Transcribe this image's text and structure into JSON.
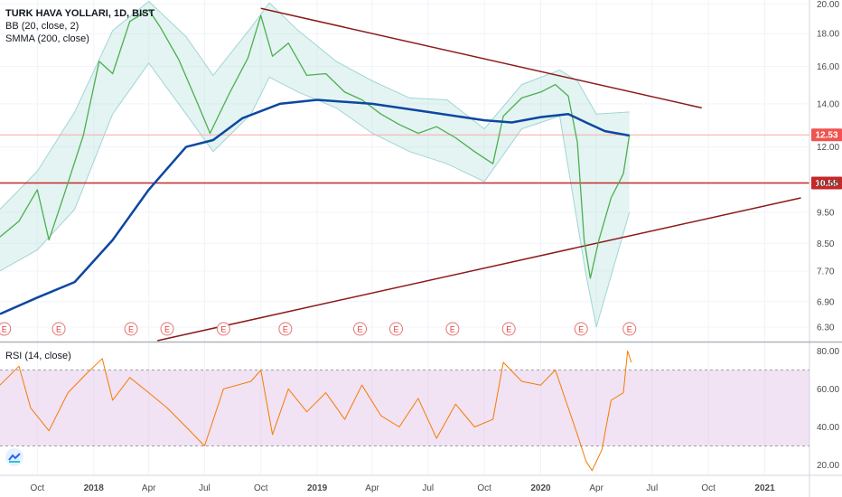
{
  "chart_data": [
    {
      "type": "line",
      "legend": {
        "title": "TURK HAVA YOLLARI, 1D, BIST",
        "indicators": [
          "BB (20, close, 2)",
          "SMMA (200, close)"
        ]
      },
      "ylim": [
        6.0,
        20.3
      ],
      "y_scale": "log",
      "yticks": [
        "20.00",
        "18.00",
        "16.00",
        "14.00",
        "12.00",
        "10.55",
        "9.50",
        "8.50",
        "7.70",
        "6.90",
        "6.30"
      ],
      "xticks": [
        "Oct",
        "2018",
        "Apr",
        "Jul",
        "Oct",
        "2019",
        "Apr",
        "Jul",
        "Oct",
        "2020",
        "Apr",
        "Jul",
        "Oct",
        "2021"
      ],
      "xlim": [
        "2017-08-01",
        "2021-03-15"
      ],
      "price_labels": [
        {
          "text": "12.53",
          "value": 12.53,
          "color": "#f05450"
        },
        {
          "text": "10.55",
          "value": 10.55,
          "color": "#c62828"
        }
      ],
      "horizontal_lines": [
        {
          "value": 12.53,
          "color": "#f7a9a7"
        },
        {
          "value": 10.55,
          "color": "#c62828"
        }
      ],
      "trend_lines": [
        {
          "from": [
            "2018-10-01",
            19.7
          ],
          "to": [
            "2020-09-20",
            13.8
          ],
          "color": "#8b1a1a"
        },
        {
          "from": [
            "2018-04-15",
            6.0
          ],
          "to": [
            "2021-03-01",
            10.0
          ],
          "color": "#8b1a1a"
        }
      ],
      "earnings_markers": {
        "label": "E",
        "dates": [
          "2017-08-08",
          "2017-11-05",
          "2018-03-03",
          "2018-05-01",
          "2018-08-01",
          "2018-11-10",
          "2019-03-12",
          "2019-05-10",
          "2019-08-10",
          "2019-11-10",
          "2020-03-07",
          "2020-05-25"
        ]
      },
      "series": [
        {
          "name": "price",
          "color": "#4caf50",
          "points": [
            [
              "2017-08-01",
              8.7
            ],
            [
              "2017-09-01",
              9.2
            ],
            [
              "2017-10-01",
              10.3
            ],
            [
              "2017-10-20",
              8.6
            ],
            [
              "2017-11-15",
              10.2
            ],
            [
              "2017-12-15",
              12.5
            ],
            [
              "2018-01-10",
              16.3
            ],
            [
              "2018-02-01",
              15.6
            ],
            [
              "2018-03-01",
              18.8
            ],
            [
              "2018-04-01",
              19.6
            ],
            [
              "2018-04-20",
              18.4
            ],
            [
              "2018-05-20",
              16.4
            ],
            [
              "2018-06-20",
              14.0
            ],
            [
              "2018-07-10",
              12.6
            ],
            [
              "2018-08-10",
              14.5
            ],
            [
              "2018-09-10",
              16.5
            ],
            [
              "2018-10-01",
              19.2
            ],
            [
              "2018-10-20",
              16.6
            ],
            [
              "2018-11-15",
              17.4
            ],
            [
              "2018-12-15",
              15.5
            ],
            [
              "2019-01-15",
              15.6
            ],
            [
              "2019-02-15",
              14.6
            ],
            [
              "2019-03-15",
              14.2
            ],
            [
              "2019-04-15",
              13.5
            ],
            [
              "2019-05-15",
              13.0
            ],
            [
              "2019-06-15",
              12.6
            ],
            [
              "2019-07-15",
              12.9
            ],
            [
              "2019-08-15",
              12.4
            ],
            [
              "2019-09-15",
              11.8
            ],
            [
              "2019-10-15",
              11.3
            ],
            [
              "2019-11-01",
              13.4
            ],
            [
              "2019-12-01",
              14.3
            ],
            [
              "2020-01-01",
              14.6
            ],
            [
              "2020-01-25",
              15.0
            ],
            [
              "2020-02-15",
              14.4
            ],
            [
              "2020-03-01",
              12.2
            ],
            [
              "2020-03-12",
              8.6
            ],
            [
              "2020-03-22",
              7.5
            ],
            [
              "2020-04-05",
              8.6
            ],
            [
              "2020-04-25",
              10.0
            ],
            [
              "2020-05-15",
              10.9
            ],
            [
              "2020-05-25",
              12.53
            ]
          ]
        },
        {
          "name": "smma",
          "color": "#0d47a1",
          "points": [
            [
              "2017-08-01",
              6.6
            ],
            [
              "2017-10-01",
              7.0
            ],
            [
              "2017-12-01",
              7.4
            ],
            [
              "2018-02-01",
              8.6
            ],
            [
              "2018-04-01",
              10.3
            ],
            [
              "2018-06-01",
              12.0
            ],
            [
              "2018-07-15",
              12.3
            ],
            [
              "2018-09-01",
              13.3
            ],
            [
              "2018-11-01",
              14.0
            ],
            [
              "2019-01-01",
              14.2
            ],
            [
              "2019-04-01",
              14.0
            ],
            [
              "2019-07-01",
              13.6
            ],
            [
              "2019-10-01",
              13.2
            ],
            [
              "2019-11-15",
              13.1
            ],
            [
              "2020-01-01",
              13.35
            ],
            [
              "2020-02-15",
              13.5
            ],
            [
              "2020-03-15",
              13.1
            ],
            [
              "2020-04-15",
              12.7
            ],
            [
              "2020-05-25",
              12.5
            ]
          ]
        },
        {
          "name": "bb_upper",
          "color": "#7fc6c6",
          "points": [
            [
              "2017-08-01",
              9.6
            ],
            [
              "2017-10-01",
              11.0
            ],
            [
              "2017-12-01",
              13.6
            ],
            [
              "2018-02-01",
              18.2
            ],
            [
              "2018-04-01",
              20.2
            ],
            [
              "2018-06-01",
              17.8
            ],
            [
              "2018-07-15",
              15.5
            ],
            [
              "2018-09-15",
              18.4
            ],
            [
              "2018-10-15",
              20.1
            ],
            [
              "2018-12-01",
              18.2
            ],
            [
              "2019-02-01",
              16.3
            ],
            [
              "2019-04-01",
              15.2
            ],
            [
              "2019-06-01",
              14.3
            ],
            [
              "2019-08-01",
              14.2
            ],
            [
              "2019-10-01",
              12.8
            ],
            [
              "2019-12-01",
              15.0
            ],
            [
              "2020-02-01",
              15.8
            ],
            [
              "2020-03-01",
              15.2
            ],
            [
              "2020-04-01",
              13.5
            ],
            [
              "2020-05-25",
              13.6
            ]
          ]
        },
        {
          "name": "bb_lower",
          "color": "#7fc6c6",
          "points": [
            [
              "2017-08-01",
              7.7
            ],
            [
              "2017-10-01",
              8.3
            ],
            [
              "2017-12-01",
              9.6
            ],
            [
              "2018-02-01",
              13.5
            ],
            [
              "2018-04-01",
              16.2
            ],
            [
              "2018-06-01",
              13.5
            ],
            [
              "2018-07-15",
              11.8
            ],
            [
              "2018-09-15",
              13.5
            ],
            [
              "2018-10-15",
              15.4
            ],
            [
              "2018-12-01",
              14.6
            ],
            [
              "2019-02-01",
              13.8
            ],
            [
              "2019-04-01",
              12.6
            ],
            [
              "2019-06-01",
              11.8
            ],
            [
              "2019-08-01",
              11.3
            ],
            [
              "2019-10-01",
              10.6
            ],
            [
              "2019-12-01",
              12.8
            ],
            [
              "2020-02-01",
              13.4
            ],
            [
              "2020-03-15",
              7.6
            ],
            [
              "2020-04-01",
              6.3
            ],
            [
              "2020-05-25",
              9.5
            ]
          ]
        }
      ]
    },
    {
      "type": "line",
      "legend": {
        "title": "RSI (14, close)"
      },
      "ylim": [
        15,
        84
      ],
      "yticks": [
        "80.00",
        "60.00",
        "40.00",
        "20.00"
      ],
      "band": [
        30,
        70
      ],
      "series": [
        {
          "name": "rsi",
          "color": "#f57c00",
          "points": [
            [
              "2017-08-01",
              62
            ],
            [
              "2017-09-01",
              72
            ],
            [
              "2017-09-20",
              50
            ],
            [
              "2017-10-20",
              38
            ],
            [
              "2017-11-20",
              58
            ],
            [
              "2017-12-20",
              68
            ],
            [
              "2018-01-15",
              76
            ],
            [
              "2018-02-01",
              54
            ],
            [
              "2018-03-01",
              66
            ],
            [
              "2018-04-01",
              58
            ],
            [
              "2018-05-01",
              50
            ],
            [
              "2018-06-01",
              40
            ],
            [
              "2018-07-01",
              30
            ],
            [
              "2018-08-01",
              60
            ],
            [
              "2018-09-15",
              64
            ],
            [
              "2018-10-01",
              70
            ],
            [
              "2018-10-20",
              36
            ],
            [
              "2018-11-15",
              60
            ],
            [
              "2018-12-15",
              48
            ],
            [
              "2019-01-15",
              58
            ],
            [
              "2019-02-15",
              44
            ],
            [
              "2019-03-15",
              62
            ],
            [
              "2019-04-15",
              46
            ],
            [
              "2019-05-15",
              40
            ],
            [
              "2019-06-15",
              55
            ],
            [
              "2019-07-15",
              34
            ],
            [
              "2019-08-15",
              52
            ],
            [
              "2019-09-15",
              40
            ],
            [
              "2019-10-15",
              44
            ],
            [
              "2019-11-01",
              74
            ],
            [
              "2019-12-01",
              64
            ],
            [
              "2020-01-01",
              62
            ],
            [
              "2020-01-25",
              70
            ],
            [
              "2020-02-15",
              50
            ],
            [
              "2020-03-01",
              36
            ],
            [
              "2020-03-15",
              22
            ],
            [
              "2020-03-25",
              17
            ],
            [
              "2020-04-10",
              28
            ],
            [
              "2020-04-25",
              54
            ],
            [
              "2020-05-15",
              58
            ],
            [
              "2020-05-22",
              80
            ],
            [
              "2020-05-28",
              74
            ]
          ]
        }
      ]
    }
  ]
}
